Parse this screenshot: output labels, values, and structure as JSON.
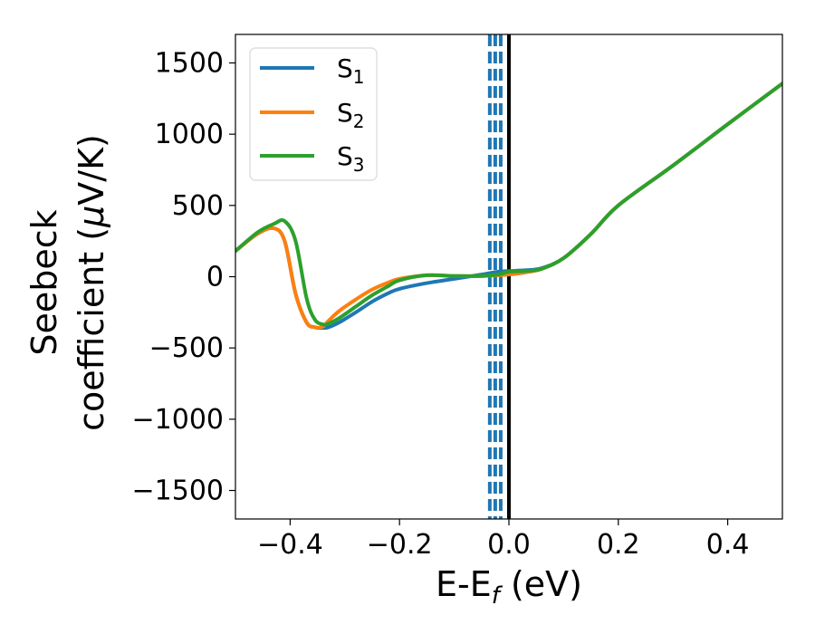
{
  "chart_data": {
    "type": "line",
    "title": "",
    "xlabel": {
      "main": "E-E",
      "sub": "f",
      "tail": " (eV)"
    },
    "ylabel": {
      "line1": "Seebeck",
      "line2_pre": "coefficient  (",
      "mu": "μ",
      "line2_post": "V/K)"
    },
    "xlim": [
      -0.5,
      0.5
    ],
    "ylim": [
      -1700,
      1700
    ],
    "xticks": [
      -0.4,
      -0.2,
      0.0,
      0.2,
      0.4
    ],
    "xtick_labels": [
      "−0.4",
      "−0.2",
      "0.0",
      "0.2",
      "0.4"
    ],
    "yticks": [
      -1500,
      -1000,
      -500,
      0,
      500,
      1000,
      1500
    ],
    "ytick_labels": [
      "−1500",
      "−1000",
      "−500",
      "0",
      "500",
      "1000",
      "1500"
    ],
    "legend_position": "top-left",
    "grid": false,
    "series": [
      {
        "name": "S",
        "sub": "1",
        "color": "#1f77b4",
        "x": [
          -0.5,
          -0.46,
          -0.43,
          -0.41,
          -0.39,
          -0.37,
          -0.355,
          -0.34,
          -0.33,
          -0.31,
          -0.28,
          -0.25,
          -0.22,
          -0.2,
          -0.15,
          -0.1,
          -0.05,
          -0.02,
          0.0,
          0.03,
          0.06,
          0.1,
          0.15,
          0.2,
          0.3,
          0.4,
          0.5
        ],
        "y": [
          180,
          300,
          340,
          250,
          -120,
          -320,
          -355,
          -360,
          -355,
          -320,
          -250,
          -175,
          -115,
          -85,
          -45,
          -15,
          15,
          35,
          40,
          45,
          60,
          130,
          300,
          500,
          780,
          1070,
          1355
        ]
      },
      {
        "name": "S",
        "sub": "2",
        "color": "#ff7f0e",
        "x": [
          -0.5,
          -0.46,
          -0.43,
          -0.41,
          -0.39,
          -0.37,
          -0.355,
          -0.34,
          -0.33,
          -0.31,
          -0.28,
          -0.25,
          -0.22,
          -0.2,
          -0.15,
          -0.1,
          -0.05,
          -0.02,
          0.0,
          0.03,
          0.06,
          0.1,
          0.15,
          0.2,
          0.3,
          0.4,
          0.5
        ],
        "y": [
          180,
          300,
          340,
          250,
          -120,
          -320,
          -355,
          -350,
          -310,
          -240,
          -160,
          -90,
          -40,
          -15,
          10,
          5,
          5,
          10,
          15,
          30,
          55,
          130,
          300,
          500,
          780,
          1070,
          1355
        ]
      },
      {
        "name": "S",
        "sub": "3",
        "color": "#2ca02c",
        "x": [
          -0.5,
          -0.46,
          -0.43,
          -0.41,
          -0.39,
          -0.37,
          -0.355,
          -0.34,
          -0.33,
          -0.31,
          -0.28,
          -0.25,
          -0.22,
          -0.2,
          -0.15,
          -0.1,
          -0.05,
          -0.02,
          0.0,
          0.03,
          0.06,
          0.1,
          0.15,
          0.2,
          0.3,
          0.4,
          0.5
        ],
        "y": [
          180,
          310,
          370,
          390,
          250,
          -150,
          -300,
          -335,
          -330,
          -290,
          -210,
          -130,
          -65,
          -25,
          10,
          5,
          5,
          15,
          35,
          40,
          55,
          130,
          300,
          500,
          780,
          1070,
          1355
        ]
      }
    ],
    "vlines": {
      "dashed_color": "#1f77b4",
      "dashed_x": [
        -0.035,
        -0.025,
        -0.015
      ],
      "solid_color": "#000000",
      "solid_x": [
        0.0
      ]
    }
  }
}
